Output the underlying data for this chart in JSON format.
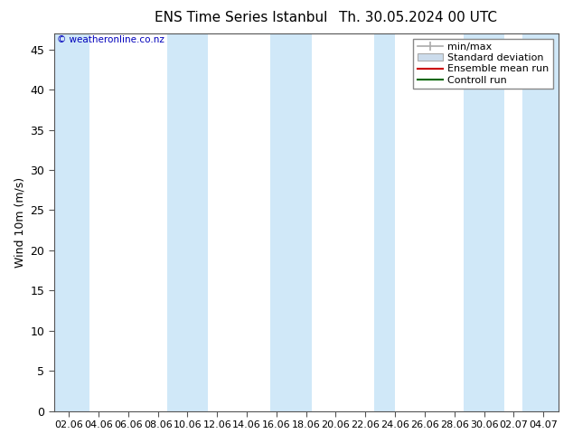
{
  "title1": "ENS Time Series Istanbul",
  "title2": "Th. 30.05.2024 00 UTC",
  "ylabel": "Wind 10m (m/s)",
  "watermark": "© weatheronline.co.nz",
  "ylim": [
    0,
    47
  ],
  "yticks": [
    0,
    5,
    10,
    15,
    20,
    25,
    30,
    35,
    40,
    45
  ],
  "x_labels": [
    "02.06",
    "04.06",
    "06.06",
    "08.06",
    "10.06",
    "12.06",
    "14.06",
    "16.06",
    "18.06",
    "20.06",
    "22.06",
    "24.06",
    "26.06",
    "28.06",
    "30.06",
    "02.07",
    "04.07"
  ],
  "legend_items": [
    {
      "label": "min/max",
      "color": "#b0b0b0",
      "type": "errorbar"
    },
    {
      "label": "Standard deviation",
      "color": "#ccdcec",
      "type": "rect"
    },
    {
      "label": "Ensemble mean run",
      "color": "#cc0000",
      "type": "line"
    },
    {
      "label": "Controll run",
      "color": "#006600",
      "type": "line"
    }
  ],
  "bg_color": "#ffffff",
  "plot_bg_color": "#ffffff",
  "band_color": "#d0e8f8",
  "band_alpha": 1.0,
  "watermark_color": "#0000bb",
  "title_color": "#000000",
  "font_family": "DejaVu Sans"
}
